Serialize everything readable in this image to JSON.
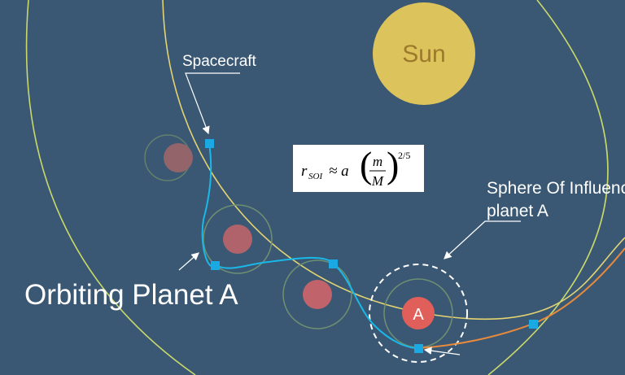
{
  "sun": {
    "label": "Sun"
  },
  "labels": {
    "spacecraft": "Spacecraft",
    "soi_line1": "Sphere Of Influence",
    "soi_line2": "planet A",
    "orbiting": "Orbiting Planet A",
    "planet": "A"
  },
  "formula": {
    "symbol": "r",
    "subscript": "SOI",
    "relation": "≈ a",
    "numerator": "m",
    "denominator": "M",
    "exponent": "2/5"
  }
}
